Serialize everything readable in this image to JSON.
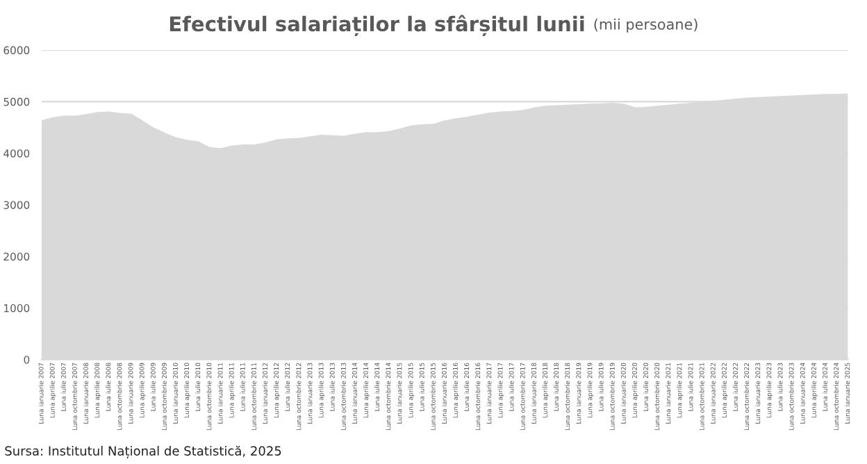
{
  "chart_data": {
    "type": "area",
    "title": "Efectivul salariaților la sfârșitul lunii",
    "subtitle": "(mii persoane)",
    "categories": [
      "Luna ianuarie 2007",
      "Luna aprilie 2007",
      "Luna iulie 2007",
      "Luna octombrie 2007",
      "Luna ianuarie 2008",
      "Luna aprilie 2008",
      "Luna iulie 2008",
      "Luna octombrie 2008",
      "Luna ianuarie 2009",
      "Luna aprilie 2009",
      "Luna iulie 2009",
      "Luna octombrie 2009",
      "Luna ianuarie 2010",
      "Luna aprilie 2010",
      "Luna iulie 2010",
      "Luna octombrie 2010",
      "Luna ianuarie 2011",
      "Luna aprilie 2011",
      "Luna iulie 2011",
      "Luna octombrie 2011",
      "Luna ianuarie 2012",
      "Luna aprilie 2012",
      "Luna iulie 2012",
      "Luna octombrie 2012",
      "Luna ianuarie 2013",
      "Luna aprilie 2013",
      "Luna iulie 2013",
      "Luna octombrie 2013",
      "Luna ianuarie 2014",
      "Luna aprilie 2014",
      "Luna iulie 2014",
      "Luna octombrie 2014",
      "Luna ianuarie 2015",
      "Luna aprilie 2015",
      "Luna iulie 2015",
      "Luna octombrie 2015",
      "Luna ianuarie 2016",
      "Luna aprilie 2016",
      "Luna iulie 2016",
      "Luna octombrie 2016",
      "Luna ianuarie 2017",
      "Luna aprilie 2017",
      "Luna iulie 2017",
      "Luna octombrie 2017",
      "Luna ianuarie 2018",
      "Luna aprilie 2018",
      "Luna iulie 2018",
      "Luna octombrie 2018",
      "Luna ianuarie 2019",
      "Luna aprilie 2019",
      "Luna iulie 2019",
      "Luna octombrie 2019",
      "Luna ianuarie 2020",
      "Luna aprilie 2020",
      "Luna iulie 2020",
      "Luna octombrie 2020",
      "Luna ianuarie 2021",
      "Luna aprilie 2021",
      "Luna iulie 2021",
      "Luna octombrie 2021",
      "Luna ianuarie 2022",
      "Luna aprilie 2022",
      "Luna iulie 2022",
      "Luna octombrie 2022",
      "Luna ianuarie 2023",
      "Luna aprilie 2023",
      "Luna iulie 2023",
      "Luna octombrie 2023",
      "Luna ianuarie 2024",
      "Luna aprilie 2024",
      "Luna iulie 2024",
      "Luna octombrie 2024",
      "Luna ianuarie 2025"
    ],
    "values": [
      4640,
      4700,
      4730,
      4730,
      4760,
      4800,
      4810,
      4780,
      4770,
      4640,
      4500,
      4400,
      4310,
      4260,
      4230,
      4120,
      4100,
      4150,
      4170,
      4170,
      4210,
      4270,
      4290,
      4300,
      4330,
      4360,
      4350,
      4340,
      4380,
      4410,
      4410,
      4430,
      4480,
      4540,
      4560,
      4570,
      4640,
      4680,
      4710,
      4750,
      4790,
      4810,
      4820,
      4840,
      4890,
      4920,
      4930,
      4940,
      4950,
      4960,
      4970,
      4980,
      4960,
      4890,
      4900,
      4920,
      4940,
      4960,
      4980,
      5000,
      5020,
      5040,
      5060,
      5080,
      5090,
      5100,
      5110,
      5120,
      5130,
      5140,
      5150,
      5150,
      5160
    ],
    "color": "#d9d9d9",
    "ylim": [
      0,
      6000
    ],
    "yticks": [
      0,
      1000,
      2000,
      3000,
      4000,
      5000,
      6000
    ],
    "grid": "y",
    "annotations": [
      "Sursa: Institutul Național de Statistică, 2025"
    ]
  }
}
